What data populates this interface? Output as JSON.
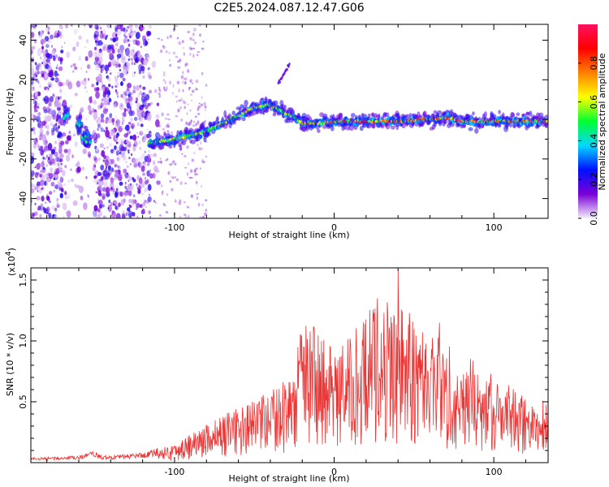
{
  "chart_data": [
    {
      "type": "heatmap",
      "title": "C2E5.2024.087.12.47.G06",
      "xlabel": "Height of straight line (km)",
      "ylabel": "Frequency (Hz)",
      "xlim": [
        -190,
        134
      ],
      "ylim": [
        -50,
        48
      ],
      "x_ticks": [
        -100,
        0,
        100
      ],
      "y_ticks": [
        -40,
        -20,
        0,
        20,
        40
      ],
      "grid": false,
      "colorbar": {
        "label": "Normalized spectral amplitude",
        "range": [
          0,
          1
        ],
        "ticks": [
          0.0,
          0.2,
          0.4,
          0.6,
          0.8
        ],
        "colormap": [
          "#f5f0fb",
          "#7a00d8",
          "#0010ff",
          "#00d8ff",
          "#00ff30",
          "#ffff00",
          "#ff8000",
          "#ff0000",
          "#ff1060"
        ]
      },
      "ridge": {
        "x": [
          -170,
          -163,
          -157,
          -150,
          -116,
          -100,
          -80,
          -60,
          -50,
          -42,
          -35,
          -30,
          -25,
          -20,
          -10,
          0,
          20,
          40,
          60,
          70,
          80,
          100,
          120,
          134
        ],
        "y": [
          2,
          -3,
          -9,
          -12,
          -12,
          -10,
          -6,
          2,
          6,
          8,
          5,
          3,
          1,
          -2,
          -2,
          -1,
          -1,
          -1,
          0,
          1,
          -1,
          -1,
          -1,
          -1
        ]
      },
      "branch": {
        "x": [
          -35,
          -32,
          -28
        ],
        "y": [
          18,
          22,
          28
        ]
      },
      "noise_region": {
        "x_range": [
          -190,
          -110
        ],
        "bands": [
          [
            -190,
            -170
          ],
          [
            -150,
            -115
          ]
        ]
      }
    },
    {
      "type": "line",
      "xlabel": "Height of straight line (km)",
      "ylabel": "SNR (10 * v/v)",
      "y_multiplier": "(x10",
      "y_multiplier_exp": "4",
      "y_multiplier_close": ")",
      "xlim": [
        -190,
        134
      ],
      "ylim": [
        0,
        1.6
      ],
      "x_ticks": [
        -100,
        0,
        100
      ],
      "y_ticks": [
        0.5,
        1.0,
        1.5
      ],
      "y_tick_labels": [
        "0.5",
        "1.0",
        "1.5"
      ],
      "line_color": "#ee3333",
      "envelope": {
        "x": [
          -190,
          -160,
          -150,
          -145,
          -120,
          -100,
          -80,
          -60,
          -40,
          -25,
          -20,
          -10,
          0,
          10,
          20,
          30,
          40,
          50,
          60,
          70,
          80,
          100,
          120,
          134
        ],
        "y": [
          0.03,
          0.04,
          0.07,
          0.04,
          0.06,
          0.12,
          0.25,
          0.35,
          0.45,
          0.58,
          0.92,
          0.85,
          0.7,
          0.8,
          0.95,
          1.05,
          1.0,
          0.95,
          0.85,
          0.78,
          0.7,
          0.55,
          0.42,
          0.4
        ]
      },
      "peaks": [
        {
          "x": -19,
          "y": 0.95
        },
        {
          "x": 27,
          "y": 1.35
        },
        {
          "x": 40,
          "y": 1.58
        },
        {
          "x": 66,
          "y": 1.15
        }
      ]
    }
  ]
}
